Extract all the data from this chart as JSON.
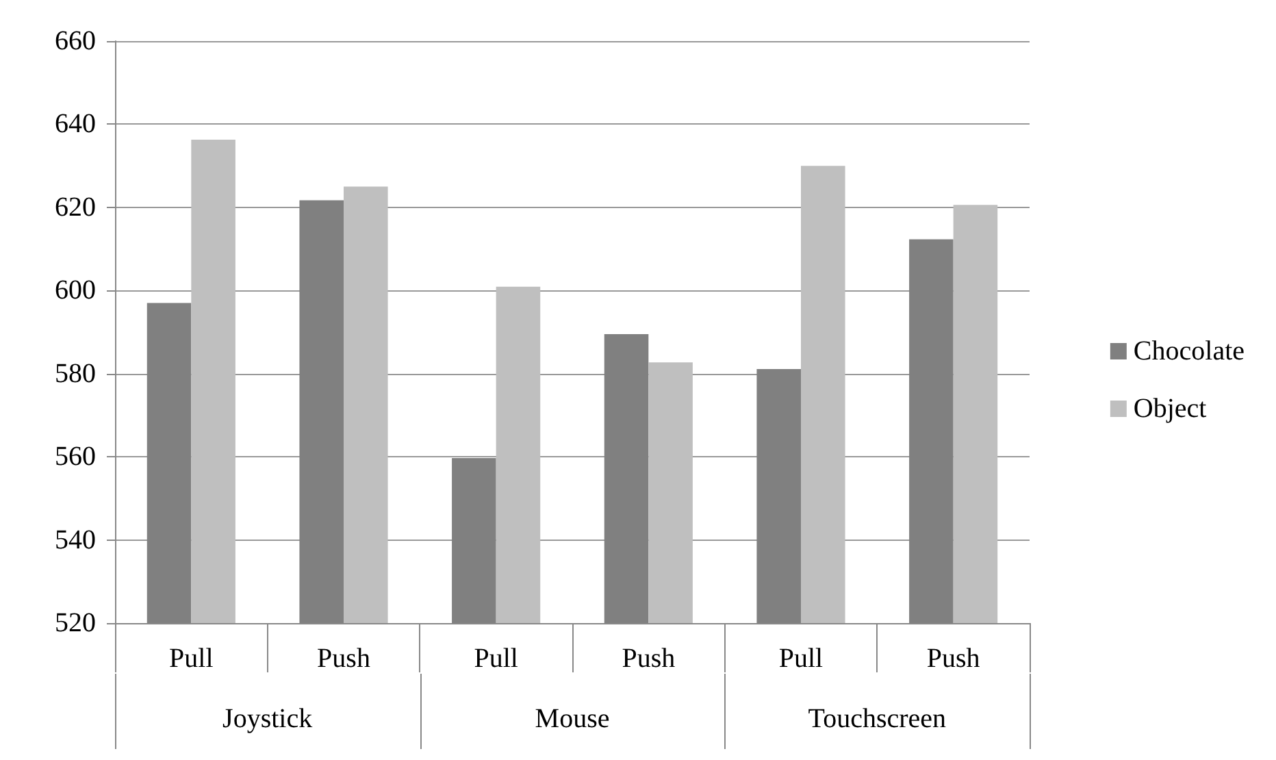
{
  "chart_data": {
    "type": "bar",
    "categories": [
      "Pull",
      "Push",
      "Pull",
      "Push",
      "Pull",
      "Push"
    ],
    "annotations": [
      "Joystick",
      "Mouse",
      "Touchscreen"
    ],
    "series": [
      {
        "name": "Chocolate",
        "color": "#808080",
        "values": [
          597,
          621.7,
          559.7,
          589.5,
          581.1,
          612.3
        ]
      },
      {
        "name": "Object",
        "color": "#bfbfbf",
        "values": [
          636.3,
          625,
          600.9,
          582.7,
          630,
          620.6
        ]
      }
    ],
    "ylim": [
      520,
      660
    ],
    "yticks": [
      520,
      540,
      560,
      580,
      600,
      620,
      640,
      660
    ],
    "grid": "y",
    "legend": "right"
  }
}
